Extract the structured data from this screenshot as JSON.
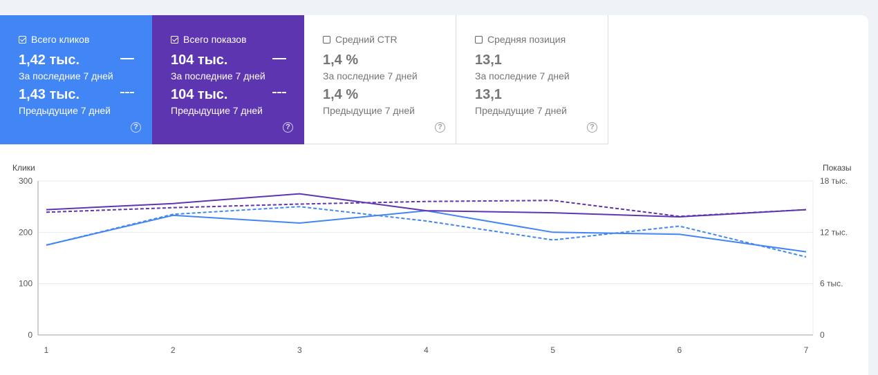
{
  "metrics": [
    {
      "label": "Всего кликов",
      "checked": true,
      "color": "#4285f4",
      "current": "1,42 тыс.",
      "current_label": "За последние 7 дней",
      "previous": "1,43 тыс.",
      "previous_label": "Предыдущие 7 дней",
      "help": "?"
    },
    {
      "label": "Всего показов",
      "checked": true,
      "color": "#5e35b1",
      "current": "104 тыс.",
      "current_label": "За последние 7 дней",
      "previous": "104 тыс.",
      "previous_label": "Предыдущие 7 дней",
      "help": "?"
    },
    {
      "label": "Средний CTR",
      "checked": false,
      "current": "1,4 %",
      "current_label": "За последние 7 дней",
      "previous": "1,4 %",
      "previous_label": "Предыдущие 7 дней",
      "help": "?"
    },
    {
      "label": "Средняя позиция",
      "checked": false,
      "current": "13,1",
      "current_label": "За последние 7 дней",
      "previous": "13,1",
      "previous_label": "Предыдущие 7 дней",
      "help": "?"
    }
  ],
  "chart_data": {
    "type": "line",
    "x": [
      1,
      2,
      3,
      4,
      5,
      6,
      7
    ],
    "y_left_label": "Клики",
    "y_right_label": "Показы",
    "y_left_ticks": [
      "0",
      "100",
      "200",
      "300"
    ],
    "y_right_ticks": [
      "0",
      "6 тыс.",
      "12 тыс.",
      "18 тыс."
    ],
    "y_left_lim": [
      0,
      300
    ],
    "y_right_lim": [
      0,
      18000
    ],
    "grid": true,
    "series": [
      {
        "axis": "left",
        "style": "solid",
        "color": "#4285f4",
        "values": [
          175,
          233,
          218,
          242,
          200,
          196,
          162
        ]
      },
      {
        "axis": "left",
        "style": "dashed",
        "color": "#4285f4",
        "values": [
          175,
          235,
          250,
          222,
          185,
          212,
          152
        ]
      },
      {
        "axis": "right",
        "style": "solid",
        "color": "#5e35b1",
        "values": [
          14640,
          15360,
          16500,
          14520,
          14280,
          13800,
          14640
        ]
      },
      {
        "axis": "right",
        "style": "dashed",
        "color": "#5e35b1",
        "values": [
          14340,
          14880,
          15300,
          15600,
          15720,
          13860,
          14640
        ]
      }
    ]
  }
}
